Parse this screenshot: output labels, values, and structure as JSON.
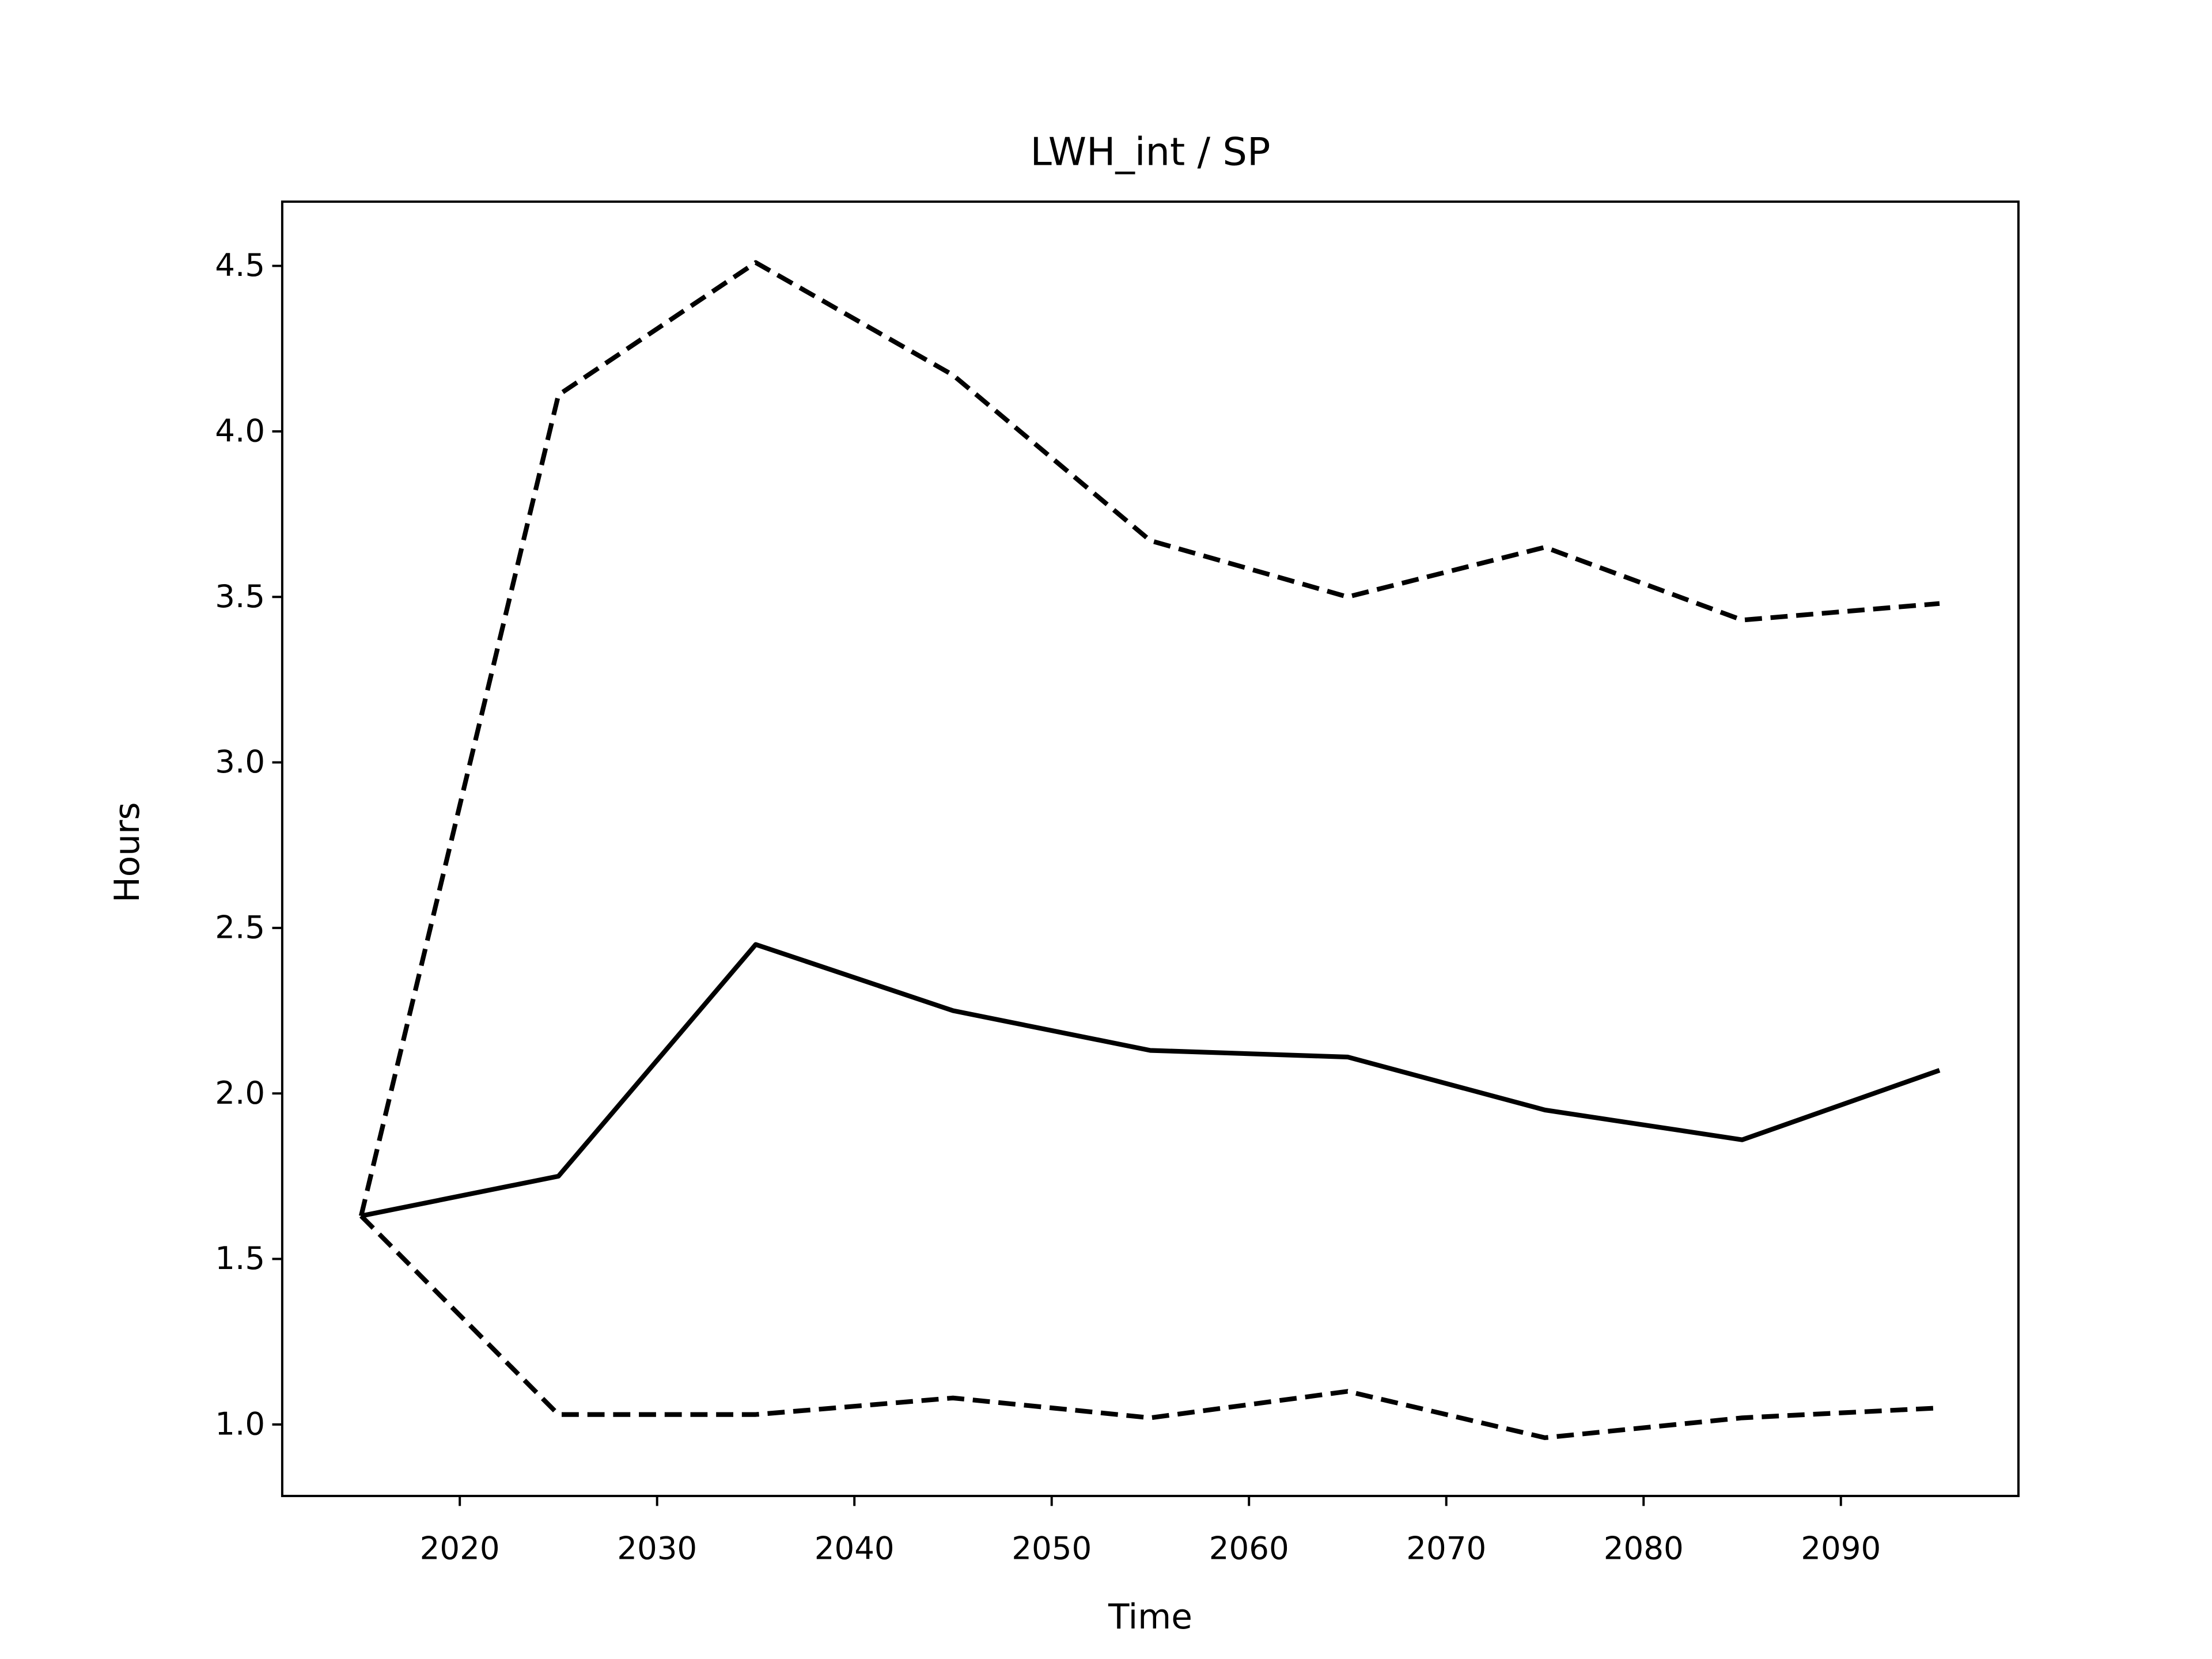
{
  "chart_data": {
    "type": "line",
    "title": "LWH_int / SP",
    "xlabel": "Time",
    "ylabel": "Hours",
    "x": [
      2015,
      2025,
      2035,
      2045,
      2055,
      2065,
      2075,
      2085,
      2095
    ],
    "series": [
      {
        "color": "#000000",
        "style": "solid",
        "values": [
          1.63,
          1.75,
          2.45,
          2.25,
          2.13,
          2.11,
          1.95,
          1.86,
          2.07
        ]
      },
      {
        "color": "#000000",
        "style": "dashed",
        "values": [
          1.63,
          4.11,
          4.51,
          4.17,
          3.67,
          3.5,
          3.65,
          3.43,
          3.48
        ]
      },
      {
        "color": "#000000",
        "style": "dashed",
        "values": [
          1.63,
          1.03,
          1.03,
          1.08,
          1.02,
          1.1,
          0.96,
          1.02,
          1.05
        ]
      }
    ],
    "xlim": [
      2011,
      2099
    ],
    "xticks": [
      2020,
      2030,
      2040,
      2050,
      2060,
      2070,
      2080,
      2090
    ],
    "ylim": [
      0.784,
      4.694
    ],
    "yticks": [
      {
        "value": 1,
        "label": "1.0"
      },
      1.5,
      {
        "value": 2,
        "label": "2.0"
      },
      2.5,
      {
        "value": 3,
        "label": "3.0"
      },
      3.5,
      {
        "value": 4,
        "label": "4.0"
      },
      4.5
    ],
    "grid": false
  }
}
